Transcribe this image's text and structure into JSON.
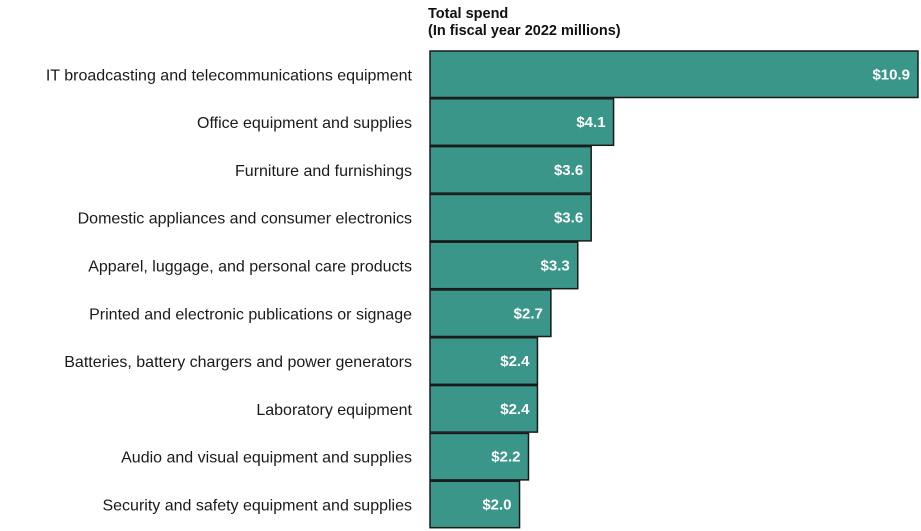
{
  "chart_data": {
    "type": "bar",
    "orientation": "horizontal",
    "title": "Total spend",
    "subtitle": "(In fiscal year 2022 millions)",
    "categories": [
      "IT broadcasting and telecommunications equipment",
      "Office equipment and supplies",
      "Furniture and furnishings",
      "Domestic appliances and consumer electronics",
      "Apparel, luggage, and personal care products",
      "Printed and electronic publications or signage",
      "Batteries, battery chargers and power generators",
      "Laboratory equipment",
      "Audio and visual equipment and supplies",
      "Security and safety equipment and supplies"
    ],
    "values": [
      10.9,
      4.1,
      3.6,
      3.6,
      3.3,
      2.7,
      2.4,
      2.4,
      2.2,
      2.0
    ],
    "value_labels": [
      "$10.9",
      "$4.1",
      "$3.6",
      "$3.6",
      "$3.3",
      "$2.7",
      "$2.4",
      "$2.4",
      "$2.2",
      "$2.0"
    ],
    "xlim": [
      0,
      10.9
    ],
    "grid": false,
    "bar_color": "#3a9689",
    "bar_edge_color": "#1a1a1a"
  }
}
